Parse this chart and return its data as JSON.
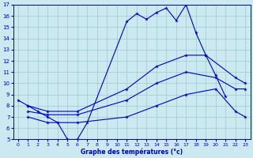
{
  "xlabel": "Graphe des températures (°c)",
  "bg_color": "#cce8f0",
  "line_color": "#0000bb",
  "grid_color": "#99cccc",
  "xlim": [
    -0.5,
    23.5
  ],
  "ylim": [
    5,
    17
  ],
  "xticks": [
    0,
    1,
    2,
    3,
    4,
    5,
    6,
    7,
    8,
    9,
    10,
    11,
    12,
    13,
    14,
    15,
    16,
    17,
    18,
    19,
    20,
    21,
    22,
    23
  ],
  "yticks": [
    5,
    6,
    7,
    8,
    9,
    10,
    11,
    12,
    13,
    14,
    15,
    16,
    17
  ],
  "series": [
    {
      "x": [
        0,
        1,
        2,
        3,
        4,
        5,
        6,
        7,
        11,
        12,
        13,
        14,
        15,
        16,
        17,
        18,
        19,
        20,
        21
      ],
      "y": [
        8.5,
        8.0,
        7.5,
        7.0,
        6.5,
        5.0,
        5.0,
        6.5,
        15.5,
        16.2,
        15.7,
        16.3,
        16.7,
        15.6,
        17.0,
        14.5,
        12.5,
        10.7,
        8.8
      ]
    },
    {
      "x": [
        1,
        3,
        6,
        11,
        14,
        17,
        19,
        22,
        23
      ],
      "y": [
        8.0,
        7.5,
        7.5,
        9.5,
        11.5,
        12.5,
        12.5,
        10.5,
        10.0
      ]
    },
    {
      "x": [
        1,
        3,
        6,
        11,
        14,
        17,
        20,
        22,
        23
      ],
      "y": [
        7.5,
        7.2,
        7.2,
        8.5,
        10.0,
        11.0,
        10.5,
        9.5,
        9.5
      ]
    },
    {
      "x": [
        1,
        3,
        6,
        11,
        14,
        17,
        20,
        22,
        23
      ],
      "y": [
        7.0,
        6.5,
        6.5,
        7.0,
        8.0,
        9.0,
        9.5,
        7.5,
        7.0
      ]
    }
  ]
}
